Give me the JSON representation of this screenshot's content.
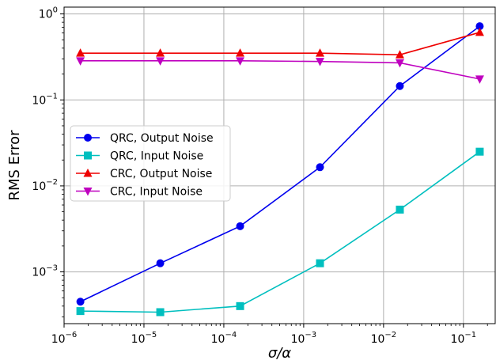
{
  "chart_data": {
    "type": "line",
    "xscale": "log",
    "yscale": "log",
    "xlabel": "σ/α",
    "ylabel": "RMS Error",
    "xlim": [
      1e-06,
      0.25
    ],
    "ylim": [
      0.00025,
      1.2
    ],
    "grid": true,
    "legend_position": "center-left",
    "x": [
      1.6e-06,
      1.6e-05,
      0.00016,
      0.0016,
      0.016,
      0.16
    ],
    "xticks": [
      {
        "value": 1e-06,
        "base": "10",
        "exp": "−6"
      },
      {
        "value": 1e-05,
        "base": "10",
        "exp": "−5"
      },
      {
        "value": 0.0001,
        "base": "10",
        "exp": "−4"
      },
      {
        "value": 0.001,
        "base": "10",
        "exp": "−3"
      },
      {
        "value": 0.01,
        "base": "10",
        "exp": "−2"
      },
      {
        "value": 0.1,
        "base": "10",
        "exp": "−1"
      }
    ],
    "yticks": [
      {
        "value": 0.001,
        "base": "10",
        "exp": "−3"
      },
      {
        "value": 0.01,
        "base": "10",
        "exp": "−2"
      },
      {
        "value": 0.1,
        "base": "10",
        "exp": "−1"
      },
      {
        "value": 1,
        "base": "10",
        "exp": "0"
      }
    ],
    "series": [
      {
        "name": "QRC, Output Noise",
        "color": "#0000ee",
        "marker": "circle",
        "values": [
          0.00045,
          0.00126,
          0.0034,
          0.0165,
          0.145,
          0.72
        ]
      },
      {
        "name": "QRC, Input Noise",
        "color": "#00bfbf",
        "marker": "square",
        "values": [
          0.00035,
          0.00034,
          0.0004,
          0.00126,
          0.0053,
          0.025
        ]
      },
      {
        "name": "CRC, Output Noise",
        "color": "#ee0000",
        "marker": "triangle-up",
        "values": [
          0.35,
          0.35,
          0.35,
          0.35,
          0.335,
          0.61
        ]
      },
      {
        "name": "CRC, Input Noise",
        "color": "#bf00bf",
        "marker": "triangle-down",
        "values": [
          0.285,
          0.285,
          0.285,
          0.28,
          0.27,
          0.175
        ]
      }
    ]
  }
}
